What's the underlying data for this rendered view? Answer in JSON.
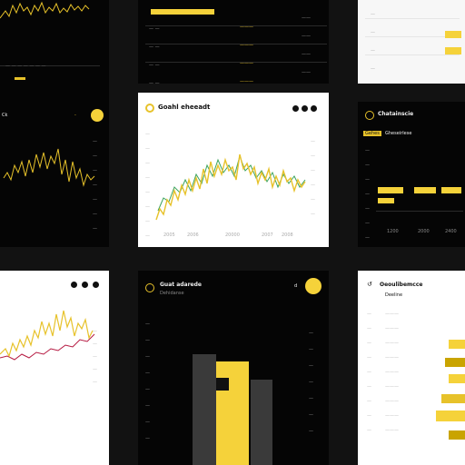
{
  "tiles": {
    "top_left": {
      "corner_label": "Ck"
    },
    "center": {
      "title": "Goahl eheeadt",
      "x_labels": [
        "2005",
        "2006",
        "20000",
        "2007",
        "2008"
      ]
    },
    "mid_right": {
      "title": "Chatainscie",
      "subtitle": "Gehes",
      "subtitle_extra": "Gheseirlese",
      "x_labels": [
        "1200",
        "2000",
        "2400"
      ]
    },
    "bottom_center": {
      "title": "Guat adarede",
      "subtitle": "Dehidanse",
      "side_label": "d"
    },
    "bottom_right": {
      "title": "Oeoulibemcce",
      "subtitle": "Deeline"
    }
  },
  "colors": {
    "accent": "#f5d23a",
    "accent_dark": "#c9a400",
    "red_line": "#b51840",
    "green_line": "#3da35d"
  }
}
